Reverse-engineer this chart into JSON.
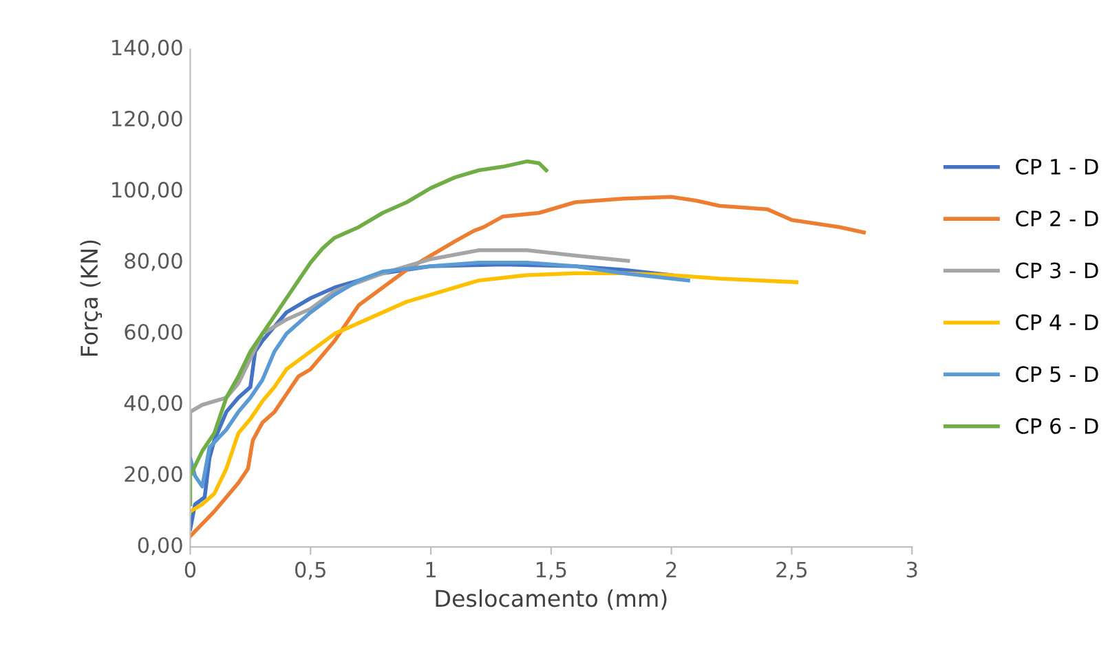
{
  "chart_data": {
    "type": "line",
    "xlabel": "Deslocamento (mm)",
    "ylabel": "Força (KN)",
    "xlim": [
      0,
      3
    ],
    "ylim": [
      0,
      140
    ],
    "xticks": [
      0,
      {
        "value": 0.5,
        "label": "0,5"
      },
      1,
      {
        "value": 1.5,
        "label": "1,5"
      },
      2,
      {
        "value": 2.5,
        "label": "2,5"
      },
      3
    ],
    "yticks": [
      {
        "value": 0,
        "label": "0,00"
      },
      {
        "value": 20,
        "label": "20,00"
      },
      {
        "value": 40,
        "label": "40,00"
      },
      {
        "value": 60,
        "label": "60,00"
      },
      {
        "value": 80,
        "label": "80,00"
      },
      {
        "value": 100,
        "label": "100,00"
      },
      {
        "value": 120,
        "label": "120,00"
      },
      {
        "value": 140,
        "label": "140,00"
      }
    ],
    "grid": false,
    "legend": "right",
    "marker": "none",
    "line_style": "solid",
    "series": [
      {
        "name": "CP 1 - D",
        "color": "#4472c4",
        "x": [
          0,
          0.02,
          0.06,
          0.08,
          0.1,
          0.15,
          0.2,
          0.25,
          0.27,
          0.3,
          0.35,
          0.4,
          0.5,
          0.6,
          0.8,
          1.0,
          1.3,
          1.6,
          1.8,
          2.0
        ],
        "values": [
          5,
          12,
          14,
          25,
          30,
          38,
          42,
          45,
          55,
          58,
          62,
          66,
          70,
          73,
          77,
          79,
          79.5,
          79,
          78,
          76.5
        ]
      },
      {
        "name": "CP 2 - D",
        "color": "#ed7d31",
        "x": [
          0,
          0.1,
          0.2,
          0.24,
          0.26,
          0.3,
          0.35,
          0.4,
          0.45,
          0.5,
          0.55,
          0.6,
          0.65,
          0.7,
          0.8,
          0.9,
          1.0,
          1.1,
          1.18,
          1.22,
          1.3,
          1.45,
          1.6,
          1.8,
          2.0,
          2.1,
          2.2,
          2.4,
          2.5,
          2.6,
          2.7,
          2.8
        ],
        "values": [
          3,
          10,
          18,
          22,
          30,
          35,
          38,
          43,
          48,
          50,
          54,
          58,
          63,
          68,
          73,
          78,
          82,
          86,
          89,
          90,
          93,
          94,
          97,
          98,
          98.5,
          97.5,
          96,
          95,
          92,
          91,
          90,
          88.5
        ]
      },
      {
        "name": "CP 3 - D",
        "color": "#a5a5a5",
        "x": [
          0,
          0,
          0.05,
          0.15,
          0.2,
          0.25,
          0.3,
          0.4,
          0.5,
          0.6,
          0.8,
          1.0,
          1.2,
          1.4,
          1.6,
          1.82
        ],
        "values": [
          25,
          38,
          40,
          42,
          46,
          53,
          60,
          64,
          67,
          72,
          77,
          81,
          83.5,
          83.5,
          82,
          80.5
        ]
      },
      {
        "name": "CP 4 - D",
        "color": "#ffc000",
        "x": [
          0,
          0.05,
          0.1,
          0.15,
          0.2,
          0.25,
          0.3,
          0.35,
          0.4,
          0.5,
          0.6,
          0.7,
          0.8,
          0.9,
          1.0,
          1.1,
          1.2,
          1.4,
          1.6,
          1.8,
          2.0,
          2.2,
          2.52
        ],
        "values": [
          10,
          12,
          15,
          22,
          32,
          36,
          41,
          45,
          50,
          55,
          60,
          63,
          66,
          69,
          71,
          73,
          75,
          76.5,
          77,
          77,
          76.5,
          75.5,
          74.5
        ]
      },
      {
        "name": "CP 5 - D",
        "color": "#5b9bd5",
        "x": [
          0,
          0,
          0.02,
          0.05,
          0.08,
          0.15,
          0.2,
          0.25,
          0.3,
          0.35,
          0.4,
          0.5,
          0.6,
          0.7,
          0.8,
          1.0,
          1.2,
          1.4,
          1.6,
          1.8,
          2.07
        ],
        "values": [
          22,
          25,
          20,
          17,
          28,
          33,
          38,
          42,
          47,
          55,
          60,
          66,
          71,
          75,
          77.5,
          79,
          80,
          80,
          79,
          77,
          75
        ]
      },
      {
        "name": "CP 6 - D",
        "color": "#70ad47",
        "x": [
          0,
          0,
          0.05,
          0.1,
          0.15,
          0.2,
          0.25,
          0.3,
          0.35,
          0.4,
          0.45,
          0.5,
          0.55,
          0.6,
          0.7,
          0.8,
          0.9,
          1.0,
          1.1,
          1.2,
          1.3,
          1.4,
          1.45,
          1.48
        ],
        "values": [
          12,
          20,
          27,
          32,
          42,
          48,
          55,
          60,
          65,
          70,
          75,
          80,
          84,
          87,
          90,
          94,
          97,
          101,
          104,
          106,
          107,
          108.5,
          108,
          106
        ]
      }
    ]
  }
}
